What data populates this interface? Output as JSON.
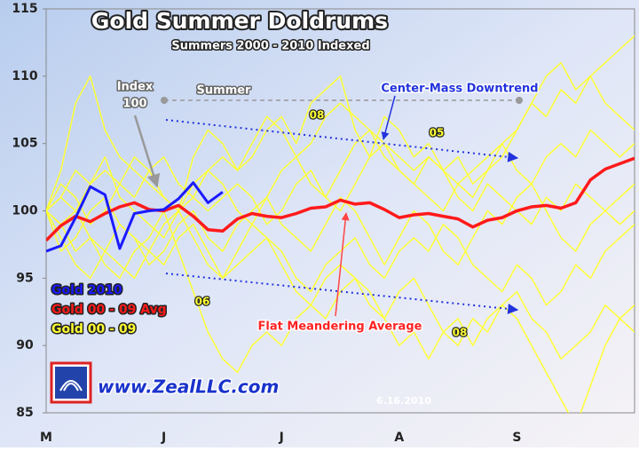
{
  "chart_data": {
    "type": "line",
    "title": "Gold Summer Doldrums",
    "subtitle": "Summers 2000 - 2010 Indexed",
    "annotations": {
      "index": [
        "Index",
        "100"
      ],
      "summer": "Summer",
      "downtrend": "Center-Mass Downtrend",
      "average": "Flat Meandering Average",
      "year_labels": [
        "08",
        "05",
        "06",
        "08"
      ],
      "website": "www.ZealLLC.com",
      "date": "6.16.2010"
    },
    "categories": [
      "M",
      null,
      null,
      null,
      null,
      null,
      null,
      null,
      "J",
      null,
      null,
      null,
      null,
      null,
      null,
      null,
      "J",
      null,
      null,
      null,
      null,
      null,
      null,
      null,
      "A",
      null,
      null,
      null,
      null,
      null,
      null,
      null,
      "S",
      null,
      null,
      null,
      null,
      null,
      null,
      null,
      null
    ],
    "ylim": [
      85,
      115
    ],
    "yticks": [
      85,
      90,
      95,
      100,
      105,
      110,
      115
    ],
    "grid": false,
    "series": [
      {
        "name": "Gold 2010",
        "color": "#1a1aff",
        "values": [
          97.0,
          97.4,
          99.5,
          101.8,
          101.2,
          97.2,
          99.8,
          100.0,
          100.1,
          100.9,
          102.1,
          100.6,
          101.4,
          null,
          null,
          null,
          null,
          null,
          null,
          null,
          null,
          null,
          null,
          null,
          null,
          null,
          null,
          null,
          null,
          null,
          null,
          null,
          null,
          null,
          null,
          null,
          null,
          null,
          null,
          null,
          null
        ]
      },
      {
        "name": "Gold 00 - 09 Avg",
        "color": "#ff1a1a",
        "values": [
          97.8,
          98.9,
          99.6,
          99.2,
          99.8,
          100.3,
          100.6,
          100.1,
          100.0,
          100.4,
          99.6,
          98.6,
          98.5,
          99.4,
          99.8,
          99.6,
          99.5,
          99.8,
          100.2,
          100.3,
          100.8,
          100.5,
          100.6,
          100.1,
          99.5,
          99.7,
          99.8,
          99.6,
          99.4,
          98.8,
          99.3,
          99.5,
          100.0,
          100.3,
          100.4,
          100.2,
          100.6,
          102.3,
          103.1,
          103.5,
          103.9
        ]
      },
      {
        "name": "Gold 00 - 09",
        "color": "#ffff33",
        "values": [
          [
            100,
            101,
            103,
            102,
            104,
            101,
            100,
            99,
            98,
            100,
            102,
            103,
            104,
            103,
            105,
            107,
            106,
            104,
            105,
            107,
            108,
            107,
            106,
            105,
            104,
            103,
            104,
            103,
            102,
            101,
            103,
            104,
            106,
            108,
            107,
            109,
            108,
            110,
            111,
            112,
            113
          ],
          [
            100,
            99,
            97,
            98,
            96,
            95,
            97,
            98,
            100,
            97,
            94,
            91,
            89,
            88,
            90,
            91,
            90,
            92,
            93,
            92,
            94,
            95,
            93,
            92,
            94,
            95,
            93,
            91,
            92,
            90,
            92,
            93,
            92,
            90,
            88,
            86,
            84,
            87,
            90,
            92,
            93
          ],
          [
            100,
            103,
            108,
            110,
            106,
            104,
            103,
            102,
            101,
            100,
            104,
            106,
            105,
            103,
            104,
            106,
            107,
            105,
            108,
            109,
            110,
            106,
            104,
            107,
            106,
            104,
            105,
            103,
            104,
            102,
            103,
            105,
            106,
            108,
            110,
            111,
            109,
            110,
            108,
            107,
            106
          ],
          [
            100,
            98,
            96,
            95,
            97,
            99,
            98,
            97,
            96,
            98,
            99,
            97,
            95,
            96,
            97,
            98,
            97,
            95,
            94,
            96,
            97,
            98,
            96,
            95,
            97,
            98,
            97,
            99,
            98,
            96,
            95,
            94,
            96,
            95,
            93,
            94,
            96,
            95,
            97,
            98,
            99
          ],
          [
            100,
            101,
            100,
            102,
            103,
            102,
            101,
            103,
            104,
            102,
            101,
            100,
            101,
            102,
            101,
            99,
            100,
            102,
            103,
            101,
            100,
            102,
            104,
            105,
            103,
            102,
            101,
            100,
            102,
            103,
            104,
            105,
            103,
            102,
            104,
            105,
            104,
            106,
            105,
            104,
            105
          ],
          [
            100,
            99,
            100,
            98,
            97,
            96,
            95,
            97,
            99,
            100,
            98,
            96,
            95,
            97,
            99,
            98,
            96,
            94,
            93,
            95,
            96,
            95,
            94,
            92,
            90,
            91,
            89,
            91,
            90,
            92,
            91,
            93,
            94,
            92,
            91,
            89,
            90,
            91,
            93,
            92,
            91
          ],
          [
            100,
            102,
            101,
            99,
            100,
            102,
            104,
            103,
            101,
            100,
            101,
            103,
            102,
            100,
            99,
            101,
            103,
            104,
            102,
            101,
            103,
            105,
            106,
            104,
            103,
            102,
            104,
            103,
            101,
            100,
            102,
            101,
            100,
            99,
            101,
            100,
            102,
            101,
            100,
            99,
            100
          ],
          [
            100,
            97,
            98,
            100,
            101,
            99,
            98,
            96,
            97,
            99,
            100,
            98,
            97,
            99,
            100,
            101,
            99,
            98,
            97,
            99,
            101,
            100,
            98,
            96,
            98,
            100,
            99,
            97,
            96,
            98,
            100,
            99,
            101,
            102,
            100,
            98,
            97,
            99,
            100,
            101,
            102
          ]
        ]
      }
    ]
  }
}
